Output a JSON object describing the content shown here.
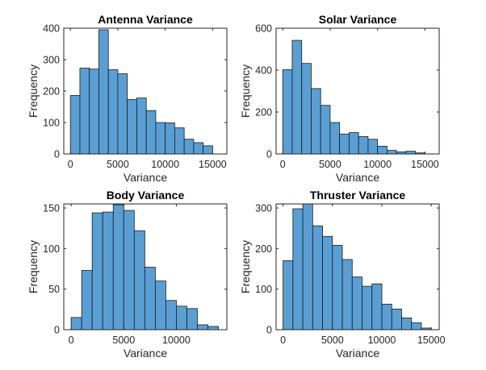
{
  "figure": {
    "bar_fill": "#5a9fd4",
    "bar_edge": "#1a1a1a",
    "axis_color": "#262626"
  },
  "chart_data": [
    {
      "type": "bar",
      "title": "Antenna Variance",
      "xlabel": "Variance",
      "ylabel": "Frequency",
      "bin_start": 0,
      "bin_width": 1000,
      "values": [
        186,
        273,
        270,
        395,
        268,
        255,
        173,
        178,
        138,
        100,
        99,
        83,
        47,
        36,
        26
      ],
      "xlim": [
        -700,
        16500
      ],
      "ylim": [
        0,
        400
      ],
      "xticks": [
        0,
        5000,
        10000,
        15000
      ],
      "yticks": [
        0,
        100,
        200,
        300,
        400
      ],
      "xtick_labels": [
        "0",
        "5000",
        "10000",
        "15000"
      ],
      "ytick_labels": [
        "0",
        "100",
        "200",
        "300",
        "400"
      ],
      "grid": false
    },
    {
      "type": "bar",
      "title": "Solar Variance",
      "xlabel": "Variance",
      "ylabel": "Frequency",
      "bin_start": 0,
      "bin_width": 1000,
      "values": [
        402,
        542,
        432,
        312,
        232,
        150,
        95,
        102,
        83,
        70,
        37,
        17,
        10,
        13,
        5
      ],
      "xlim": [
        -700,
        16500
      ],
      "ylim": [
        0,
        600
      ],
      "xticks": [
        0,
        5000,
        10000,
        15000
      ],
      "yticks": [
        0,
        200,
        400,
        600
      ],
      "xtick_labels": [
        "0",
        "5000",
        "10000",
        "15000"
      ],
      "ytick_labels": [
        "0",
        "200",
        "400",
        "600"
      ],
      "grid": false
    },
    {
      "type": "bar",
      "title": "Body Variance",
      "xlabel": "Variance",
      "ylabel": "Frequency",
      "bin_start": 0,
      "bin_width": 1000,
      "values": [
        15,
        73,
        144,
        145,
        154,
        147,
        122,
        77,
        60,
        36,
        29,
        26,
        6,
        4
      ],
      "xlim": [
        -700,
        14800
      ],
      "ylim": [
        0,
        155
      ],
      "xticks": [
        0,
        5000,
        10000
      ],
      "yticks": [
        0,
        50,
        100,
        150
      ],
      "xtick_labels": [
        "0",
        "5000",
        "10000"
      ],
      "ytick_labels": [
        "0",
        "50",
        "100",
        "150"
      ],
      "grid": false
    },
    {
      "type": "bar",
      "title": "Thruster Variance",
      "xlabel": "Variance",
      "ylabel": "Frequency",
      "bin_start": 0,
      "bin_width": 1000,
      "values": [
        170,
        298,
        311,
        256,
        230,
        208,
        173,
        130,
        107,
        113,
        63,
        51,
        29,
        17,
        4
      ],
      "xlim": [
        -700,
        15800
      ],
      "ylim": [
        0,
        310
      ],
      "xticks": [
        0,
        5000,
        10000,
        15000
      ],
      "yticks": [
        0,
        100,
        200,
        300
      ],
      "xtick_labels": [
        "0",
        "5000",
        "10000",
        "15000"
      ],
      "ytick_labels": [
        "0",
        "100",
        "200",
        "300"
      ],
      "grid": false
    }
  ]
}
